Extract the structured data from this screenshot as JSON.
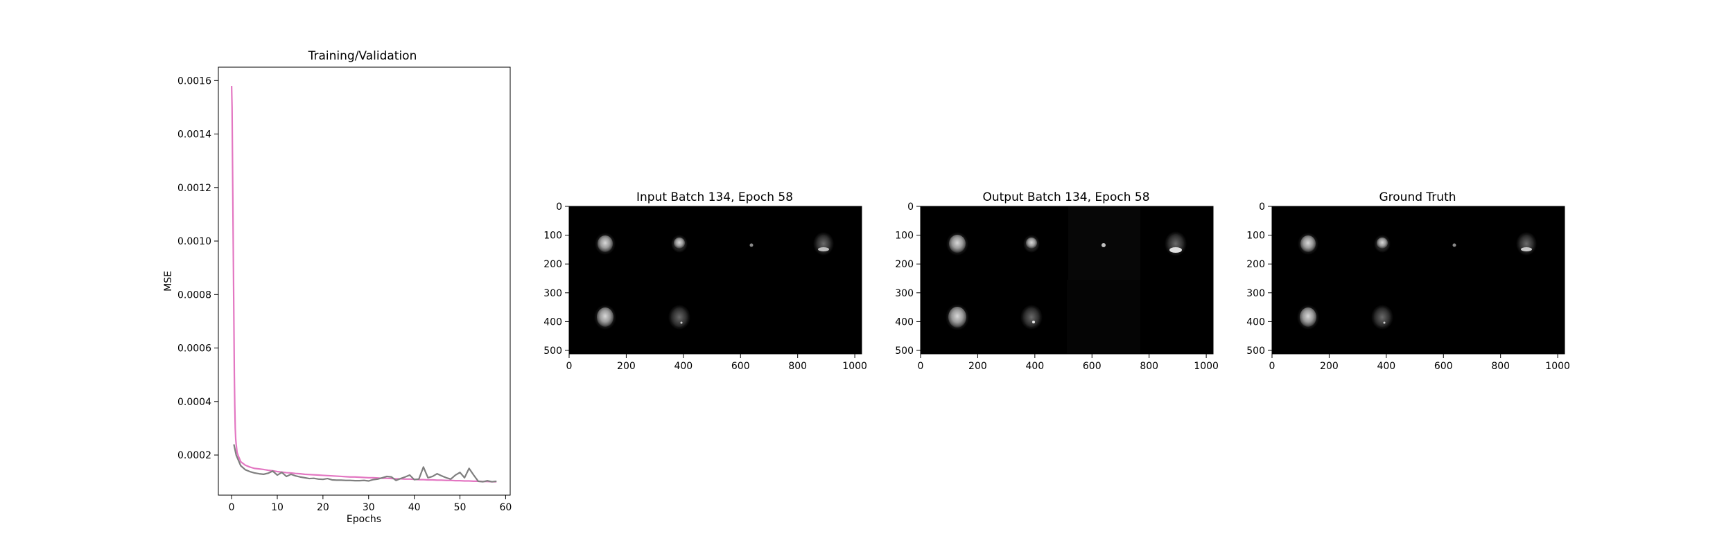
{
  "chart_data": [
    {
      "type": "line",
      "title": "Training/Validation",
      "xlabel": "Epochs",
      "ylabel": "MSE",
      "xlim": [
        -2.9,
        61
      ],
      "ylim": [
        5e-05,
        0.00165
      ],
      "xticks": [
        0,
        10,
        20,
        30,
        40,
        50,
        60
      ],
      "yticks": [
        0.0002,
        0.0004,
        0.0006,
        0.0008,
        0.001,
        0.0012,
        0.0014,
        0.0016
      ],
      "ytick_labels": [
        "0.0002",
        "0.0004",
        "0.0006",
        "0.0008",
        "0.0010",
        "0.0012",
        "0.0014",
        "0.0016"
      ],
      "grid": false,
      "series": [
        {
          "color": "#e377c2",
          "x": [
            0.0,
            0.1,
            0.2,
            0.3,
            0.4,
            0.5,
            0.6,
            0.7,
            0.8,
            0.9,
            1.0,
            1.2,
            1.5,
            2,
            3,
            4,
            5,
            6,
            7,
            8,
            9,
            10,
            11,
            12,
            13,
            14,
            15,
            16,
            17,
            18,
            19,
            20,
            21,
            22,
            23,
            24,
            25,
            26,
            27,
            28,
            29,
            30,
            31,
            32,
            33,
            34,
            35,
            36,
            37,
            38,
            39,
            40,
            41,
            42,
            43,
            44,
            45,
            46,
            47,
            48,
            49,
            50,
            51,
            52,
            53,
            54,
            55,
            56,
            57,
            58
          ],
          "y": [
            0.00158,
            0.0015,
            0.0013,
            0.0011,
            0.0009,
            0.0007,
            0.0005,
            0.00038,
            0.0003,
            0.00026,
            0.00024,
            0.00021,
            0.000195,
            0.000175,
            0.000162,
            0.000155,
            0.00015,
            0.000148,
            0.000146,
            0.000143,
            0.000141,
            0.000138,
            0.000136,
            0.000134,
            0.000133,
            0.000131,
            0.00013,
            0.000128,
            0.000127,
            0.000126,
            0.000125,
            0.000124,
            0.000123,
            0.000122,
            0.000121,
            0.00012,
            0.000119,
            0.000118,
            0.000118,
            0.000117,
            0.000116,
            0.000115,
            0.000115,
            0.000114,
            0.000113,
            0.000113,
            0.000112,
            0.000111,
            0.000111,
            0.00011,
            0.00011,
            0.000109,
            0.000108,
            0.000108,
            0.000107,
            0.000107,
            0.000106,
            0.000106,
            0.000105,
            0.000105,
            0.000104,
            0.000104,
            0.000103,
            0.000103,
            0.000102,
            0.000102,
            0.000101,
            0.000101,
            0.0001,
            0.0001
          ]
        },
        {
          "color": "#7f7f7f",
          "x": [
            0.5,
            1,
            2,
            3,
            4,
            5,
            6,
            7,
            8,
            9,
            10,
            11,
            12,
            13,
            14,
            15,
            16,
            17,
            18,
            19,
            20,
            21,
            22,
            23,
            24,
            25,
            26,
            27,
            28,
            29,
            30,
            31,
            32,
            33,
            34,
            35,
            36,
            37,
            38,
            39,
            40,
            41,
            42,
            43,
            44,
            45,
            46,
            47,
            48,
            49,
            50,
            51,
            52,
            53,
            54,
            55,
            56,
            57,
            58
          ],
          "y": [
            0.00024,
            0.0002,
            0.00016,
            0.000145,
            0.000138,
            0.000133,
            0.00013,
            0.000128,
            0.000132,
            0.00014,
            0.000125,
            0.000135,
            0.00012,
            0.000128,
            0.000122,
            0.000118,
            0.000115,
            0.000112,
            0.000113,
            0.00011,
            0.000109,
            0.000112,
            0.000107,
            0.000106,
            0.000106,
            0.000105,
            0.000105,
            0.000104,
            0.000104,
            0.000105,
            0.000103,
            0.000108,
            0.00011,
            0.000115,
            0.00012,
            0.000118,
            0.000105,
            0.000112,
            0.000118,
            0.000125,
            0.000108,
            0.00011,
            0.000155,
            0.000115,
            0.00012,
            0.00013,
            0.000122,
            0.000115,
            0.00011,
            0.000125,
            0.000135,
            0.000115,
            0.00015,
            0.000125,
            0.000102,
            0.0001,
            0.000104,
            0.0001,
            0.000102
          ]
        }
      ]
    },
    {
      "type": "image",
      "title": "Input Batch 134, Epoch 58",
      "xlim": [
        0,
        1024
      ],
      "ylim": [
        0,
        512
      ],
      "xticks": [
        0,
        200,
        400,
        600,
        800,
        1000
      ],
      "yticks": [
        0,
        100,
        200,
        300,
        400,
        500
      ],
      "grid": false
    },
    {
      "type": "image",
      "title": "Output Batch 134, Epoch 58",
      "xlim": [
        0,
        1024
      ],
      "ylim": [
        0,
        512
      ],
      "xticks": [
        0,
        200,
        400,
        600,
        800,
        1000
      ],
      "yticks": [
        0,
        100,
        200,
        300,
        400,
        500
      ],
      "grid": false
    },
    {
      "type": "image",
      "title": "Ground Truth",
      "xlim": [
        0,
        1024
      ],
      "ylim": [
        0,
        512
      ],
      "xticks": [
        0,
        200,
        400,
        600,
        800,
        1000
      ],
      "yticks": [
        0,
        100,
        200,
        300,
        400,
        500
      ],
      "grid": false
    }
  ]
}
